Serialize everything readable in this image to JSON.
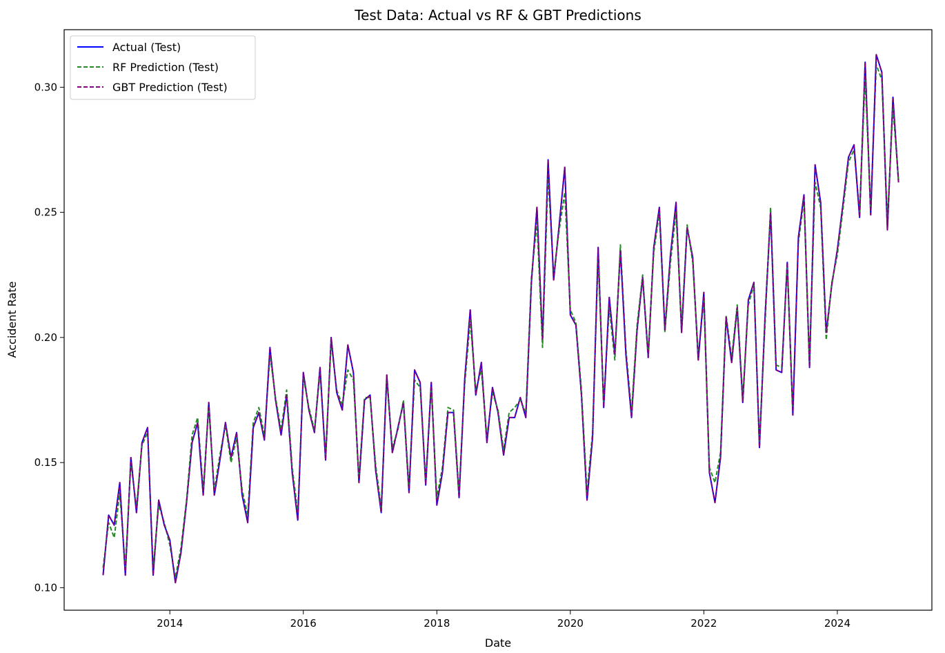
{
  "chart_data": {
    "type": "line",
    "title": "Test Data: Actual vs RF & GBT Predictions",
    "xlabel": "Date",
    "ylabel": "Accident Rate",
    "x_ticks": [
      "2014",
      "2016",
      "2018",
      "2020",
      "2022",
      "2024"
    ],
    "y_ticks": [
      "0.10",
      "0.15",
      "0.20",
      "0.25",
      "0.30"
    ],
    "xlim": [
      "2012-06",
      "2025-06"
    ],
    "ylim": [
      0.091,
      0.323
    ],
    "grid": false,
    "legend_position": "top-left",
    "x": [
      "2013-01",
      "2013-02",
      "2013-03",
      "2013-04",
      "2013-05",
      "2013-06",
      "2013-07",
      "2013-08",
      "2013-09",
      "2013-10",
      "2013-11",
      "2013-12",
      "2014-01",
      "2014-02",
      "2014-03",
      "2014-04",
      "2014-05",
      "2014-06",
      "2014-07",
      "2014-08",
      "2014-09",
      "2014-10",
      "2014-11",
      "2014-12",
      "2015-01",
      "2015-02",
      "2015-03",
      "2015-04",
      "2015-05",
      "2015-06",
      "2015-07",
      "2015-08",
      "2015-09",
      "2015-10",
      "2015-11",
      "2015-12",
      "2016-01",
      "2016-02",
      "2016-03",
      "2016-04",
      "2016-05",
      "2016-06",
      "2016-07",
      "2016-08",
      "2016-09",
      "2016-10",
      "2016-11",
      "2016-12",
      "2017-01",
      "2017-02",
      "2017-03",
      "2017-04",
      "2017-05",
      "2017-06",
      "2017-07",
      "2017-08",
      "2017-09",
      "2017-10",
      "2017-11",
      "2017-12",
      "2018-01",
      "2018-02",
      "2018-03",
      "2018-04",
      "2018-05",
      "2018-06",
      "2018-07",
      "2018-08",
      "2018-09",
      "2018-10",
      "2018-11",
      "2018-12",
      "2019-01",
      "2019-02",
      "2019-03",
      "2019-04",
      "2019-05",
      "2019-06",
      "2019-07",
      "2019-08",
      "2019-09",
      "2019-10",
      "2019-11",
      "2019-12",
      "2020-01",
      "2020-02",
      "2020-03",
      "2020-04",
      "2020-05",
      "2020-06",
      "2020-07",
      "2020-08",
      "2020-09",
      "2020-10",
      "2020-11",
      "2020-12",
      "2021-01",
      "2021-02",
      "2021-03",
      "2021-04",
      "2021-05",
      "2021-06",
      "2021-07",
      "2021-08",
      "2021-09",
      "2021-10",
      "2021-11",
      "2021-12",
      "2022-01",
      "2022-02",
      "2022-03",
      "2022-04",
      "2022-05",
      "2022-06",
      "2022-07",
      "2022-08",
      "2022-09",
      "2022-10",
      "2022-11",
      "2022-12",
      "2023-01",
      "2023-02",
      "2023-03",
      "2023-04",
      "2023-05",
      "2023-06",
      "2023-07",
      "2023-08",
      "2023-09",
      "2023-10",
      "2023-11",
      "2023-12",
      "2024-01",
      "2024-02",
      "2024-03",
      "2024-04",
      "2024-05",
      "2024-06",
      "2024-07",
      "2024-08",
      "2024-09",
      "2024-10",
      "2024-11",
      "2024-12"
    ],
    "series": [
      {
        "name": "Actual (Test)",
        "color": "#0000ff",
        "style": "solid",
        "values": [
          0.105,
          0.129,
          0.125,
          0.142,
          0.105,
          0.152,
          0.13,
          0.158,
          0.164,
          0.105,
          0.135,
          0.125,
          0.119,
          0.102,
          0.114,
          0.134,
          0.158,
          0.166,
          0.137,
          0.174,
          0.137,
          0.151,
          0.166,
          0.152,
          0.162,
          0.137,
          0.126,
          0.164,
          0.17,
          0.159,
          0.196,
          0.175,
          0.161,
          0.177,
          0.146,
          0.127,
          0.186,
          0.171,
          0.162,
          0.188,
          0.151,
          0.2,
          0.178,
          0.171,
          0.197,
          0.186,
          0.142,
          0.175,
          0.177,
          0.147,
          0.13,
          0.185,
          0.154,
          0.164,
          0.174,
          0.138,
          0.187,
          0.182,
          0.141,
          0.182,
          0.133,
          0.146,
          0.17,
          0.17,
          0.136,
          0.183,
          0.211,
          0.177,
          0.19,
          0.158,
          0.18,
          0.17,
          0.153,
          0.168,
          0.168,
          0.176,
          0.168,
          0.222,
          0.252,
          0.199,
          0.271,
          0.223,
          0.245,
          0.268,
          0.209,
          0.205,
          0.177,
          0.135,
          0.16,
          0.236,
          0.172,
          0.216,
          0.193,
          0.235,
          0.193,
          0.168,
          0.203,
          0.224,
          0.192,
          0.236,
          0.252,
          0.203,
          0.233,
          0.254,
          0.202,
          0.244,
          0.232,
          0.191,
          0.218,
          0.146,
          0.134,
          0.152,
          0.208,
          0.19,
          0.212,
          0.174,
          0.215,
          0.222,
          0.156,
          0.208,
          0.25,
          0.187,
          0.186,
          0.23,
          0.169,
          0.24,
          0.257,
          0.188,
          0.269,
          0.254,
          0.202,
          0.221,
          0.235,
          0.253,
          0.272,
          0.277,
          0.248,
          0.31,
          0.249,
          0.313,
          0.306,
          0.243,
          0.296,
          0.262
        ]
      },
      {
        "name": "RF Prediction (Test)",
        "color": "#228b22",
        "style": "dashed",
        "values": [
          0.108,
          0.126,
          0.12,
          0.138,
          0.108,
          0.15,
          0.132,
          0.157,
          0.162,
          0.108,
          0.133,
          0.126,
          0.117,
          0.104,
          0.116,
          0.135,
          0.161,
          0.168,
          0.139,
          0.172,
          0.139,
          0.153,
          0.165,
          0.15,
          0.16,
          0.139,
          0.129,
          0.166,
          0.172,
          0.161,
          0.193,
          0.176,
          0.163,
          0.179,
          0.148,
          0.13,
          0.184,
          0.172,
          0.163,
          0.186,
          0.153,
          0.198,
          0.179,
          0.173,
          0.187,
          0.183,
          0.144,
          0.176,
          0.176,
          0.149,
          0.132,
          0.183,
          0.156,
          0.163,
          0.175,
          0.14,
          0.183,
          0.18,
          0.143,
          0.18,
          0.136,
          0.148,
          0.172,
          0.171,
          0.138,
          0.181,
          0.207,
          0.179,
          0.187,
          0.16,
          0.178,
          0.171,
          0.155,
          0.17,
          0.172,
          0.175,
          0.17,
          0.224,
          0.246,
          0.196,
          0.265,
          0.225,
          0.243,
          0.258,
          0.211,
          0.206,
          0.179,
          0.138,
          0.162,
          0.232,
          0.174,
          0.212,
          0.191,
          0.237,
          0.195,
          0.17,
          0.205,
          0.225,
          0.193,
          0.234,
          0.25,
          0.202,
          0.23,
          0.25,
          0.204,
          0.245,
          0.23,
          0.193,
          0.215,
          0.148,
          0.142,
          0.154,
          0.209,
          0.192,
          0.213,
          0.176,
          0.213,
          0.221,
          0.158,
          0.205,
          0.252,
          0.189,
          0.188,
          0.228,
          0.171,
          0.238,
          0.255,
          0.19,
          0.262,
          0.252,
          0.199,
          0.222,
          0.233,
          0.251,
          0.27,
          0.275,
          0.25,
          0.304,
          0.251,
          0.309,
          0.303,
          0.247,
          0.292,
          0.263
        ]
      },
      {
        "name": "GBT Prediction (Test)",
        "color": "#800080",
        "style": "dashed",
        "values": [
          0.105,
          0.129,
          0.125,
          0.142,
          0.105,
          0.152,
          0.13,
          0.158,
          0.164,
          0.105,
          0.135,
          0.125,
          0.119,
          0.102,
          0.114,
          0.134,
          0.158,
          0.166,
          0.137,
          0.174,
          0.137,
          0.151,
          0.166,
          0.152,
          0.162,
          0.137,
          0.126,
          0.164,
          0.17,
          0.159,
          0.196,
          0.175,
          0.161,
          0.177,
          0.146,
          0.127,
          0.186,
          0.171,
          0.162,
          0.188,
          0.151,
          0.2,
          0.178,
          0.171,
          0.197,
          0.186,
          0.142,
          0.175,
          0.177,
          0.147,
          0.13,
          0.185,
          0.154,
          0.164,
          0.174,
          0.138,
          0.187,
          0.182,
          0.141,
          0.182,
          0.133,
          0.146,
          0.17,
          0.17,
          0.136,
          0.183,
          0.211,
          0.177,
          0.19,
          0.158,
          0.18,
          0.17,
          0.153,
          0.168,
          0.168,
          0.176,
          0.168,
          0.222,
          0.252,
          0.199,
          0.271,
          0.223,
          0.245,
          0.268,
          0.209,
          0.205,
          0.177,
          0.135,
          0.16,
          0.236,
          0.172,
          0.216,
          0.193,
          0.235,
          0.193,
          0.168,
          0.203,
          0.224,
          0.192,
          0.236,
          0.252,
          0.203,
          0.233,
          0.254,
          0.202,
          0.244,
          0.232,
          0.191,
          0.218,
          0.146,
          0.134,
          0.152,
          0.208,
          0.19,
          0.212,
          0.174,
          0.215,
          0.222,
          0.156,
          0.208,
          0.25,
          0.187,
          0.186,
          0.23,
          0.169,
          0.24,
          0.257,
          0.188,
          0.269,
          0.254,
          0.202,
          0.221,
          0.235,
          0.253,
          0.272,
          0.277,
          0.248,
          0.31,
          0.249,
          0.313,
          0.306,
          0.243,
          0.296,
          0.262
        ]
      }
    ]
  }
}
